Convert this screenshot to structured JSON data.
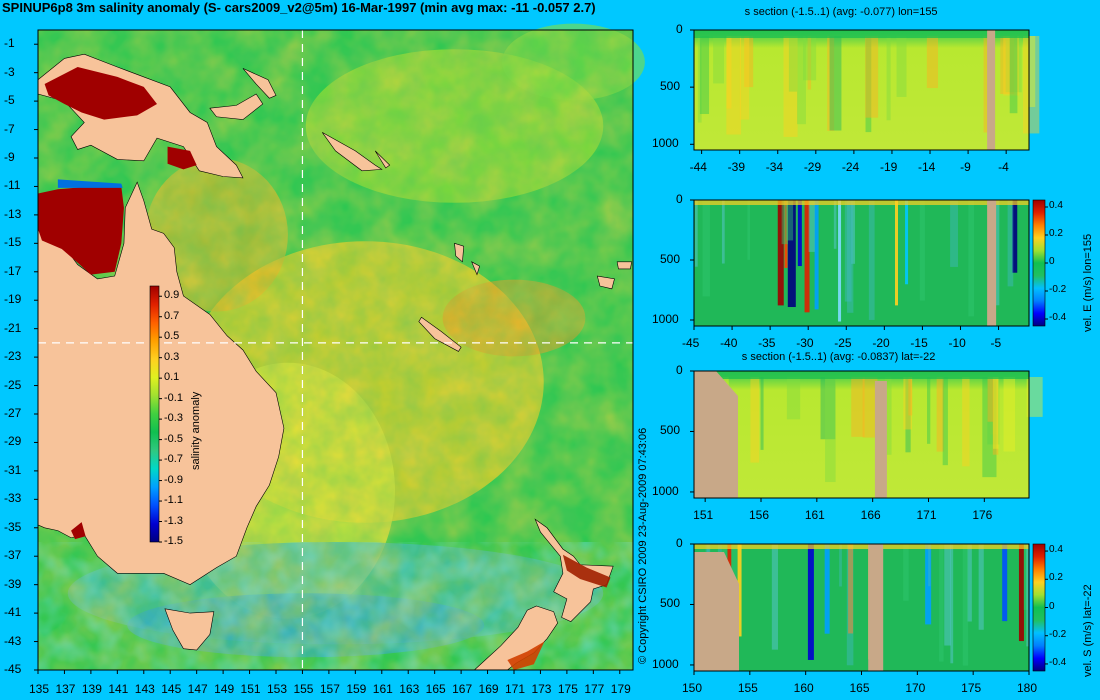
{
  "title": "SPINUP6p8 3m salinity anomaly (S- cars2009_v2@5m) 16-Mar-1997 (min avg max: -11 -0.057 2.7)",
  "copyright": "© Copyright CSIRO 2009   23-Aug-2009 07:43:06",
  "colors": {
    "background": "#00c8ff",
    "land": "#f7c39a",
    "section_land": "#c8a888",
    "colormap": [
      "#00007f",
      "#0000d0",
      "#0050ff",
      "#00a0ff",
      "#00d8c8",
      "#30c880",
      "#10c050",
      "#40d040",
      "#a0e030",
      "#e0f020",
      "#ffd020",
      "#ffa000",
      "#ff6000",
      "#e02000",
      "#a00000"
    ]
  },
  "chart_data": [
    {
      "type": "heatmap",
      "name": "map",
      "xlabel": "",
      "ylabel": "",
      "xlim": [
        135,
        180
      ],
      "ylim": [
        -45,
        0
      ],
      "x_ticks": [
        "135",
        "137",
        "139",
        "141",
        "143",
        "145",
        "147",
        "149",
        "151",
        "153",
        "155",
        "157",
        "159",
        "161",
        "163",
        "165",
        "167",
        "169",
        "171",
        "173",
        "175",
        "177",
        "179"
      ],
      "y_ticks": [
        "-1",
        "-3",
        "-5",
        "-7",
        "-9",
        "-11",
        "-13",
        "-15",
        "-17",
        "-19",
        "-21",
        "-23",
        "-25",
        "-27",
        "-29",
        "-31",
        "-33",
        "-35",
        "-37",
        "-39",
        "-41",
        "-43",
        "-45"
      ],
      "crosshair": {
        "lon": 155,
        "lat": -22
      },
      "colorbar": {
        "label": "salinity anomaly",
        "ticks": [
          "0.9",
          "0.7",
          "0.5",
          "0.3",
          "0.1",
          "-0.1",
          "-0.3",
          "-0.5",
          "-0.7",
          "-0.9",
          "-1.1",
          "-1.3",
          "-1.5"
        ],
        "range": [
          -1.5,
          1.0
        ]
      }
    },
    {
      "type": "heatmap",
      "name": "s-section-lon155",
      "title": "s section (-1.5..1) (avg: -0.077) lon=155",
      "x_ticks": [
        "-44",
        "-39",
        "-34",
        "-29",
        "-24",
        "-19",
        "-14",
        "-9",
        "-4"
      ],
      "y_ticks": [
        "0",
        "500",
        "1000"
      ],
      "xlim": [
        -45,
        -1
      ],
      "ylim": [
        1050,
        0
      ]
    },
    {
      "type": "heatmap",
      "name": "vel-e-section-lon155",
      "title": "",
      "x_ticks": [
        "-45",
        "-40",
        "-35",
        "-30",
        "-25",
        "-20",
        "-15",
        "-10",
        "-5"
      ],
      "y_ticks": [
        "0",
        "500",
        "1000"
      ],
      "xlim": [
        -45,
        -1
      ],
      "ylim": [
        1050,
        0
      ],
      "colorbar": {
        "label": "vel. E (m/s) lon=155",
        "ticks": [
          "0.4",
          "0.2",
          "0",
          "-0.2",
          "-0.4"
        ],
        "range": [
          -0.45,
          0.45
        ]
      }
    },
    {
      "type": "heatmap",
      "name": "s-section-lat-22",
      "title": "s section (-1.5..1) (avg: -0.0837) lat=-22",
      "x_ticks": [
        "151",
        "156",
        "161",
        "166",
        "171",
        "176"
      ],
      "y_ticks": [
        "0",
        "500",
        "1000"
      ],
      "xlim": [
        150,
        180
      ],
      "ylim": [
        1050,
        0
      ]
    },
    {
      "type": "heatmap",
      "name": "vel-s-section-lat-22",
      "title": "",
      "x_ticks": [
        "150",
        "155",
        "160",
        "165",
        "170",
        "175",
        "180"
      ],
      "y_ticks": [
        "0",
        "500",
        "1000"
      ],
      "xlim": [
        150,
        180
      ],
      "ylim": [
        1050,
        0
      ],
      "colorbar": {
        "label": "vel. S (m/s) lat=-22",
        "ticks": [
          "0.4",
          "0.2",
          "0",
          "-0.2",
          "-0.4"
        ],
        "range": [
          -0.45,
          0.45
        ]
      }
    }
  ]
}
